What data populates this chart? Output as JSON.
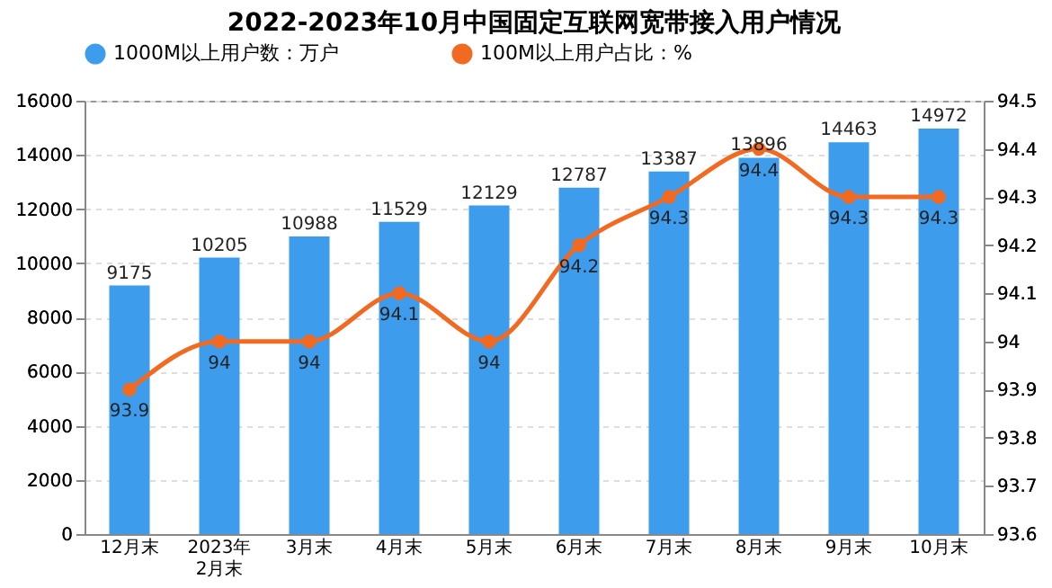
{
  "chart_data": {
    "type": "bar",
    "title": "2022-2023年10月中国固定互联网宽带接入用户情况",
    "categories": [
      "12月末",
      "2023年\n2月末",
      "3月末",
      "4月末",
      "5月末",
      "6月末",
      "7月末",
      "8月末",
      "9月末",
      "10月末"
    ],
    "series": [
      {
        "name": "1000M以上用户数：万户",
        "color": "#3d9cec",
        "values": [
          9175,
          10205,
          10988,
          11529,
          12129,
          12787,
          13387,
          13896,
          14463,
          14972
        ]
      },
      {
        "name": "100M以上用户占比：%",
        "color": "#f26a21",
        "type": "line",
        "axis": "y2",
        "marker": "circle",
        "values": [
          93.9,
          94,
          94,
          94.1,
          94,
          94.2,
          94.3,
          94.4,
          94.3,
          94.3
        ]
      }
    ],
    "ylim": [
      0,
      16000
    ],
    "yticks": [
      0,
      2000,
      4000,
      6000,
      8000,
      10000,
      12000,
      14000,
      16000
    ],
    "y2lim": [
      93.6,
      94.5
    ],
    "y2ticks": [
      93.6,
      93.7,
      93.8,
      93.9,
      94,
      94.1,
      94.2,
      94.3,
      94.4,
      94.5
    ],
    "data_labels": true,
    "legend": "top",
    "grid": "y"
  }
}
